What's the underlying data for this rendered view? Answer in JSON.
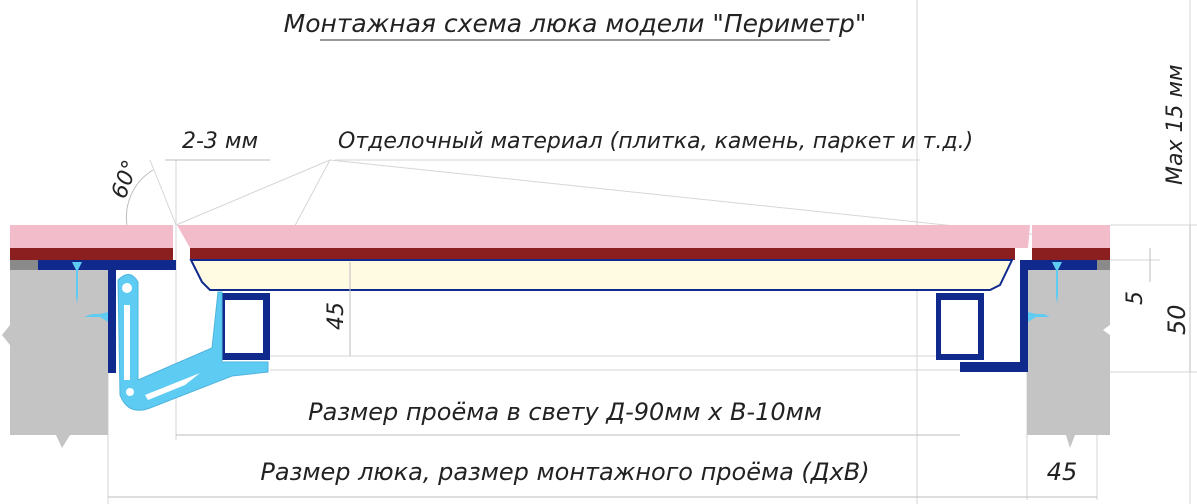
{
  "title": "Монтажная схема люка модели \"Периметр\"",
  "labels": {
    "gap": "2-3 мм",
    "finish_material": "Отделочный материал (плитка, камень, паркет и т.д.)",
    "angle": "60°",
    "frame_height": "45",
    "clear_opening": "Размер проёма в свету Д-90мм х В-10мм",
    "hatch_size": "Размер люка, размер монтажного проёма (ДхВ)",
    "side_width": "45",
    "offset": "5",
    "total_depth": "50",
    "max_thickness": "Max 15 мм"
  },
  "colors": {
    "tile": "#f3bccb",
    "adhesive": "#8b1e1e",
    "insert": "#fffbe3",
    "frame": "#0f2a8c",
    "bracket": "#5ecbf2",
    "concrete": "#c4c4c4"
  }
}
